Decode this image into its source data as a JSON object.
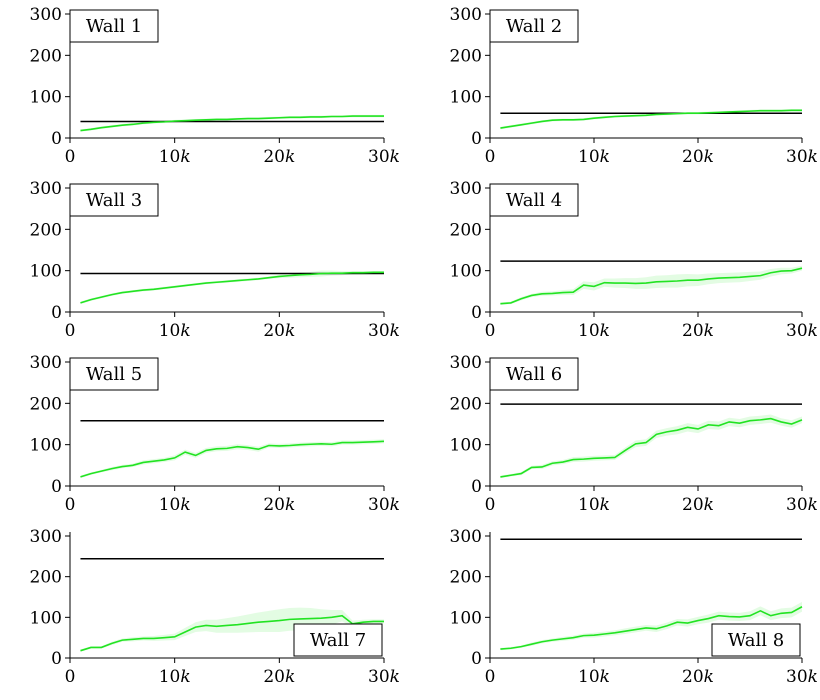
{
  "chart_data": [
    {
      "type": "line",
      "title": "Wall 1",
      "legend": "top-left",
      "xlim": [
        0,
        30000
      ],
      "ylim": [
        0,
        300
      ],
      "x_ticks": [
        {
          "v": 0,
          "label": "0"
        },
        {
          "v": 10000,
          "label": "10k"
        },
        {
          "v": 20000,
          "label": "20k"
        },
        {
          "v": 30000,
          "label": "30k"
        }
      ],
      "y_ticks": [
        0,
        100,
        200,
        300
      ],
      "reference": 40,
      "x": [
        1000,
        2000,
        3000,
        4000,
        5000,
        6000,
        7000,
        8000,
        9000,
        10000,
        11000,
        12000,
        13000,
        14000,
        15000,
        16000,
        17000,
        18000,
        19000,
        20000,
        21000,
        22000,
        23000,
        24000,
        25000,
        26000,
        27000,
        28000,
        29000,
        30000
      ],
      "values": [
        18,
        21,
        25,
        28,
        31,
        33,
        36,
        38,
        39,
        41,
        42,
        43,
        44,
        45,
        45,
        46,
        47,
        47,
        48,
        49,
        50,
        50,
        51,
        51,
        52,
        52,
        53,
        53,
        53,
        53
      ],
      "spread": [
        3,
        3,
        3,
        3,
        3,
        3,
        3,
        3,
        3,
        3,
        3,
        3,
        3,
        3,
        3,
        3,
        3,
        3,
        3,
        3,
        3,
        3,
        3,
        3,
        3,
        3,
        3,
        3,
        3,
        3
      ]
    },
    {
      "type": "line",
      "title": "Wall 2",
      "legend": "top-left",
      "xlim": [
        0,
        30000
      ],
      "ylim": [
        0,
        300
      ],
      "x_ticks": [
        {
          "v": 0,
          "label": "0"
        },
        {
          "v": 10000,
          "label": "10k"
        },
        {
          "v": 20000,
          "label": "20k"
        },
        {
          "v": 30000,
          "label": "30k"
        }
      ],
      "y_ticks": [
        0,
        100,
        200,
        300
      ],
      "reference": 60,
      "x": [
        1000,
        2000,
        3000,
        4000,
        5000,
        6000,
        7000,
        8000,
        9000,
        10000,
        11000,
        12000,
        13000,
        14000,
        15000,
        16000,
        17000,
        18000,
        19000,
        20000,
        21000,
        22000,
        23000,
        24000,
        25000,
        26000,
        27000,
        28000,
        29000,
        30000
      ],
      "values": [
        24,
        28,
        32,
        36,
        40,
        43,
        44,
        44,
        45,
        48,
        50,
        52,
        53,
        54,
        55,
        57,
        58,
        59,
        60,
        60,
        61,
        62,
        63,
        64,
        65,
        66,
        66,
        66,
        67,
        67
      ],
      "spread": [
        3,
        3,
        3,
        3,
        3,
        3,
        3,
        3,
        3,
        3,
        3,
        3,
        3,
        3,
        3,
        3,
        3,
        3,
        3,
        3,
        3,
        3,
        3,
        3,
        3,
        3,
        3,
        3,
        3,
        3
      ]
    },
    {
      "type": "line",
      "title": "Wall 3",
      "legend": "top-left",
      "xlim": [
        0,
        30000
      ],
      "ylim": [
        0,
        300
      ],
      "x_ticks": [
        {
          "v": 0,
          "label": "0"
        },
        {
          "v": 10000,
          "label": "10k"
        },
        {
          "v": 20000,
          "label": "20k"
        },
        {
          "v": 30000,
          "label": "30k"
        }
      ],
      "y_ticks": [
        0,
        100,
        200,
        300
      ],
      "reference": 93,
      "x": [
        1000,
        2000,
        3000,
        4000,
        5000,
        6000,
        7000,
        8000,
        9000,
        10000,
        11000,
        12000,
        13000,
        14000,
        15000,
        16000,
        17000,
        18000,
        19000,
        20000,
        21000,
        22000,
        23000,
        24000,
        25000,
        26000,
        27000,
        28000,
        29000,
        30000
      ],
      "values": [
        22,
        30,
        36,
        42,
        47,
        50,
        53,
        55,
        58,
        61,
        64,
        67,
        70,
        72,
        74,
        76,
        78,
        80,
        83,
        86,
        88,
        90,
        91,
        93,
        94,
        94,
        95,
        95,
        96,
        96
      ],
      "spread": [
        3,
        3,
        3,
        3,
        3,
        3,
        3,
        3,
        3,
        3,
        3,
        3,
        3,
        3,
        3,
        3,
        3,
        3,
        3,
        4,
        5,
        6,
        6,
        7,
        6,
        5,
        4,
        4,
        3,
        3
      ]
    },
    {
      "type": "line",
      "title": "Wall 4",
      "legend": "top-left",
      "xlim": [
        0,
        30000
      ],
      "ylim": [
        0,
        300
      ],
      "x_ticks": [
        {
          "v": 0,
          "label": "0"
        },
        {
          "v": 10000,
          "label": "10k"
        },
        {
          "v": 20000,
          "label": "20k"
        },
        {
          "v": 30000,
          "label": "30k"
        }
      ],
      "y_ticks": [
        0,
        100,
        200,
        300
      ],
      "reference": 123,
      "x": [
        1000,
        2000,
        3000,
        4000,
        5000,
        6000,
        7000,
        8000,
        9000,
        10000,
        11000,
        12000,
        13000,
        14000,
        15000,
        16000,
        17000,
        18000,
        19000,
        20000,
        21000,
        22000,
        23000,
        24000,
        25000,
        26000,
        27000,
        28000,
        29000,
        30000
      ],
      "values": [
        20,
        22,
        32,
        40,
        44,
        45,
        47,
        48,
        65,
        62,
        71,
        70,
        70,
        69,
        70,
        73,
        74,
        75,
        77,
        77,
        80,
        82,
        83,
        84,
        86,
        88,
        95,
        99,
        100,
        106
      ],
      "spread": [
        3,
        3,
        4,
        4,
        5,
        5,
        6,
        7,
        9,
        10,
        10,
        11,
        12,
        13,
        14,
        15,
        15,
        16,
        15,
        14,
        13,
        12,
        12,
        12,
        11,
        10,
        9,
        8,
        7,
        6
      ]
    },
    {
      "type": "line",
      "title": "Wall 5",
      "legend": "top-left",
      "xlim": [
        0,
        30000
      ],
      "ylim": [
        0,
        300
      ],
      "x_ticks": [
        {
          "v": 0,
          "label": "0"
        },
        {
          "v": 10000,
          "label": "10k"
        },
        {
          "v": 20000,
          "label": "20k"
        },
        {
          "v": 30000,
          "label": "30k"
        }
      ],
      "y_ticks": [
        0,
        100,
        200,
        300
      ],
      "reference": 158,
      "x": [
        1000,
        2000,
        3000,
        4000,
        5000,
        6000,
        7000,
        8000,
        9000,
        10000,
        11000,
        12000,
        13000,
        14000,
        15000,
        16000,
        17000,
        18000,
        19000,
        20000,
        21000,
        22000,
        23000,
        24000,
        25000,
        26000,
        27000,
        28000,
        29000,
        30000
      ],
      "values": [
        22,
        30,
        36,
        42,
        47,
        50,
        57,
        60,
        63,
        68,
        82,
        74,
        86,
        90,
        91,
        95,
        93,
        89,
        98,
        97,
        98,
        100,
        101,
        102,
        101,
        105,
        105,
        106,
        107,
        108
      ],
      "spread": [
        3,
        3,
        3,
        4,
        4,
        4,
        5,
        5,
        5,
        6,
        6,
        6,
        6,
        6,
        6,
        6,
        6,
        6,
        5,
        5,
        5,
        5,
        5,
        5,
        5,
        5,
        5,
        5,
        5,
        5
      ]
    },
    {
      "type": "line",
      "title": "Wall 6",
      "legend": "top-left",
      "xlim": [
        0,
        30000
      ],
      "ylim": [
        0,
        300
      ],
      "x_ticks": [
        {
          "v": 0,
          "label": "0"
        },
        {
          "v": 10000,
          "label": "10k"
        },
        {
          "v": 20000,
          "label": "20k"
        },
        {
          "v": 30000,
          "label": "30k"
        }
      ],
      "y_ticks": [
        0,
        100,
        200,
        300
      ],
      "reference": 198,
      "x": [
        1000,
        2000,
        3000,
        4000,
        5000,
        6000,
        7000,
        8000,
        9000,
        10000,
        11000,
        12000,
        13000,
        14000,
        15000,
        16000,
        17000,
        18000,
        19000,
        20000,
        21000,
        22000,
        23000,
        24000,
        25000,
        26000,
        27000,
        28000,
        29000,
        30000
      ],
      "values": [
        22,
        26,
        30,
        45,
        46,
        55,
        58,
        64,
        65,
        67,
        68,
        69,
        86,
        102,
        105,
        125,
        131,
        135,
        142,
        138,
        148,
        146,
        155,
        152,
        158,
        160,
        163,
        155,
        150,
        160
      ],
      "spread": [
        3,
        3,
        4,
        4,
        5,
        5,
        5,
        6,
        6,
        6,
        6,
        6,
        7,
        8,
        8,
        9,
        9,
        10,
        10,
        10,
        10,
        10,
        10,
        10,
        10,
        10,
        10,
        9,
        9,
        8
      ]
    },
    {
      "type": "line",
      "title": "Wall 7",
      "legend": "bottom-right",
      "xlim": [
        0,
        30000
      ],
      "ylim": [
        0,
        300
      ],
      "x_ticks": [
        {
          "v": 0,
          "label": "0"
        },
        {
          "v": 10000,
          "label": "10k"
        },
        {
          "v": 20000,
          "label": "20k"
        },
        {
          "v": 30000,
          "label": "30k"
        }
      ],
      "y_ticks": [
        0,
        100,
        200,
        300
      ],
      "reference": 244,
      "x": [
        1000,
        2000,
        3000,
        4000,
        5000,
        6000,
        7000,
        8000,
        9000,
        10000,
        11000,
        12000,
        13000,
        14000,
        15000,
        16000,
        17000,
        18000,
        19000,
        20000,
        21000,
        22000,
        23000,
        24000,
        25000,
        26000,
        27000,
        28000,
        29000,
        30000
      ],
      "values": [
        18,
        26,
        26,
        36,
        44,
        46,
        48,
        48,
        50,
        52,
        64,
        76,
        80,
        78,
        80,
        82,
        85,
        88,
        90,
        92,
        95,
        96,
        97,
        98,
        100,
        104,
        84,
        88,
        90,
        90
      ],
      "spread": [
        3,
        3,
        3,
        4,
        4,
        5,
        5,
        6,
        7,
        8,
        10,
        12,
        14,
        16,
        18,
        20,
        22,
        24,
        26,
        28,
        28,
        28,
        26,
        22,
        18,
        14,
        8,
        6,
        5,
        5
      ]
    },
    {
      "type": "line",
      "title": "Wall 8",
      "legend": "bottom-right",
      "xlim": [
        0,
        30000
      ],
      "ylim": [
        0,
        300
      ],
      "x_ticks": [
        {
          "v": 0,
          "label": "0"
        },
        {
          "v": 10000,
          "label": "10k"
        },
        {
          "v": 20000,
          "label": "20k"
        },
        {
          "v": 30000,
          "label": "30k"
        }
      ],
      "y_ticks": [
        0,
        100,
        200,
        300
      ],
      "reference": 292,
      "x": [
        1000,
        2000,
        3000,
        4000,
        5000,
        6000,
        7000,
        8000,
        9000,
        10000,
        11000,
        12000,
        13000,
        14000,
        15000,
        16000,
        17000,
        18000,
        19000,
        20000,
        21000,
        22000,
        23000,
        24000,
        25000,
        26000,
        27000,
        28000,
        29000,
        30000
      ],
      "values": [
        22,
        24,
        28,
        34,
        40,
        44,
        47,
        50,
        55,
        56,
        59,
        62,
        66,
        70,
        74,
        72,
        79,
        88,
        86,
        92,
        97,
        104,
        102,
        101,
        104,
        116,
        104,
        110,
        112,
        126
      ],
      "spread": [
        3,
        3,
        3,
        4,
        4,
        4,
        5,
        5,
        5,
        6,
        6,
        6,
        7,
        7,
        7,
        8,
        8,
        8,
        9,
        9,
        10,
        10,
        10,
        10,
        11,
        11,
        11,
        12,
        12,
        12
      ]
    }
  ],
  "colors": {
    "series": "#22e322",
    "band": "#7ff07f",
    "reference": "#000000"
  }
}
